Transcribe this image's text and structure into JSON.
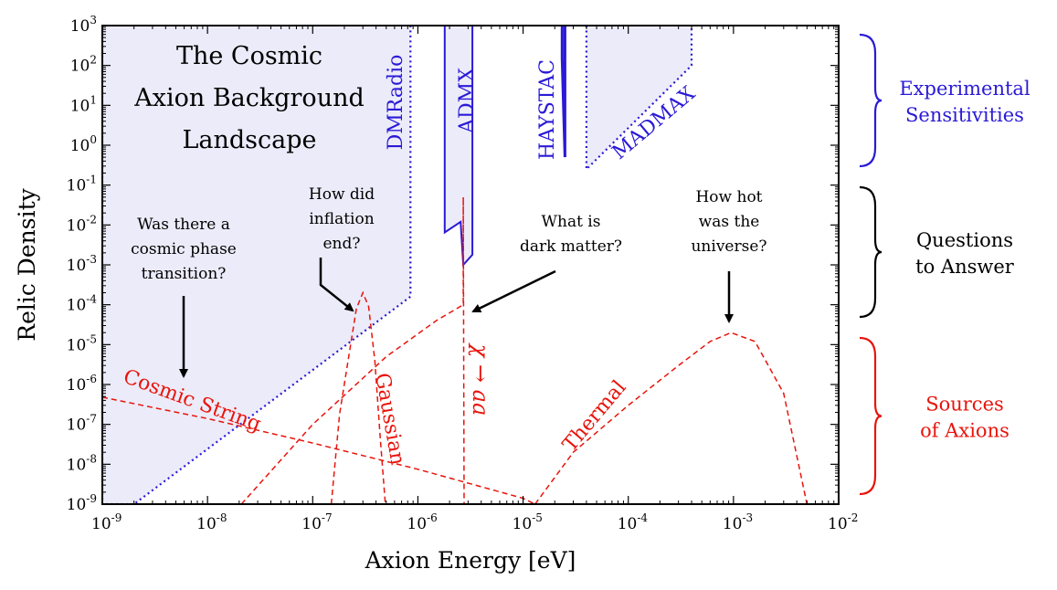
{
  "chart_data": {
    "type": "line",
    "title": "The Cosmic Axion Background Landscape",
    "title_lines": [
      "The Cosmic",
      "Axion Background",
      "Landscape"
    ],
    "xlabel": "Axion Energy [eV]",
    "ylabel": "Relic Density",
    "xscale": "log",
    "yscale": "log",
    "xlim": [
      1e-09,
      0.01
    ],
    "ylim": [
      1e-09,
      1000.0
    ],
    "xtick_exponents": [
      -9,
      -8,
      -7,
      -6,
      -5,
      -4,
      -3,
      -2
    ],
    "ytick_exponents": [
      -9,
      -8,
      -7,
      -6,
      -5,
      -4,
      -3,
      -2,
      -1,
      0,
      1,
      2,
      3
    ],
    "tick_base": "10",
    "grid": false,
    "colors": {
      "experiment": "#2a1ad6",
      "experiment_fill": "#ecebf9",
      "source": "#e8140c",
      "annotation": "#000000"
    },
    "experiments": [
      {
        "name": "DMRadio",
        "points": [
          [
            1e-09,
            1000.0
          ],
          [
            1e-09,
            1e-09
          ],
          [
            2e-09,
            1e-09
          ],
          [
            8.5e-07,
            0.00016
          ],
          [
            8.5e-07,
            1000.0
          ]
        ]
      },
      {
        "name": "ADMX",
        "points": [
          [
            1.8e-06,
            1000.0
          ],
          [
            1.8e-06,
            0.0065
          ],
          [
            2.55e-06,
            0.012
          ],
          [
            2.7e-06,
            0.001
          ],
          [
            3.3e-06,
            0.0018
          ],
          [
            3.3e-06,
            1000.0
          ]
        ]
      },
      {
        "name": "HAYSTAC",
        "points": [
          [
            2.35e-05,
            1000.0
          ],
          [
            2.35e-05,
            150.0
          ],
          [
            2.5e-05,
            0.5
          ],
          [
            2.5e-05,
            1000.0
          ]
        ]
      },
      {
        "name": "MADMAX",
        "points": [
          [
            4e-05,
            1000.0
          ],
          [
            4e-05,
            0.25
          ],
          [
            0.0004,
            100.0
          ],
          [
            0.0004,
            1000.0
          ]
        ]
      }
    ],
    "series": [
      {
        "name": "Cosmic String",
        "style": "dashed",
        "x": [
          1e-09,
          1e-08,
          1e-07,
          1e-06,
          1e-05,
          1.3e-05
        ],
        "y": [
          4.8e-07,
          1.4e-07,
          3.4e-08,
          7.5e-09,
          1.4e-09,
          1e-09
        ]
      },
      {
        "name": "Gaussian",
        "style": "dashed",
        "x": [
          1.5e-07,
          1.8e-07,
          2.2e-07,
          2.6e-07,
          3e-07,
          3.4e-07,
          3.9e-07,
          4.4e-07,
          4.9e-07
        ],
        "y": [
          1e-09,
          1.8e-07,
          5e-06,
          8e-05,
          0.0002,
          9e-05,
          4e-06,
          4e-08,
          1e-09
        ]
      },
      {
        "name": "χ → aa",
        "style": "dashed",
        "x": [
          2.1e-08,
          1e-07,
          5e-07,
          1.5e-06,
          2.7e-06,
          2.7e-06,
          2.75e-06
        ],
        "y": [
          1e-09,
          1e-07,
          5e-06,
          4e-05,
          0.0001,
          0.05,
          1e-09
        ]
      },
      {
        "name": "Thermal",
        "style": "dashed",
        "x": [
          1.3e-05,
          3e-05,
          0.0001,
          0.0003,
          0.0006,
          0.00095,
          0.0016,
          0.003,
          0.005
        ],
        "y": [
          1e-09,
          2e-08,
          3e-07,
          3e-06,
          1.2e-05,
          2e-05,
          1.2e-05,
          6e-07,
          1e-09
        ]
      }
    ],
    "annotations": [
      {
        "lines": [
          "Was there a",
          "cosmic phase",
          "transition?"
        ],
        "at": [
          6e-09,
          1.3e-06
        ]
      },
      {
        "lines": [
          "How did",
          "inflation",
          "end?"
        ],
        "at": [
          2.6e-07,
          7e-05
        ]
      },
      {
        "lines": [
          "What is",
          "dark matter?"
        ],
        "at": [
          3.3e-06,
          6e-05
        ]
      },
      {
        "lines": [
          "How hot",
          "was the",
          "universe?"
        ],
        "at": [
          0.00095,
          3.2e-05
        ]
      }
    ],
    "brackets": [
      {
        "lines": [
          "Experimental",
          "Sensitivities"
        ],
        "color": "#2a1ad6"
      },
      {
        "lines": [
          "Questions",
          "to Answer"
        ],
        "color": "#000000"
      },
      {
        "lines": [
          "Sources",
          "of Axions"
        ],
        "color": "#e8140c"
      }
    ]
  }
}
